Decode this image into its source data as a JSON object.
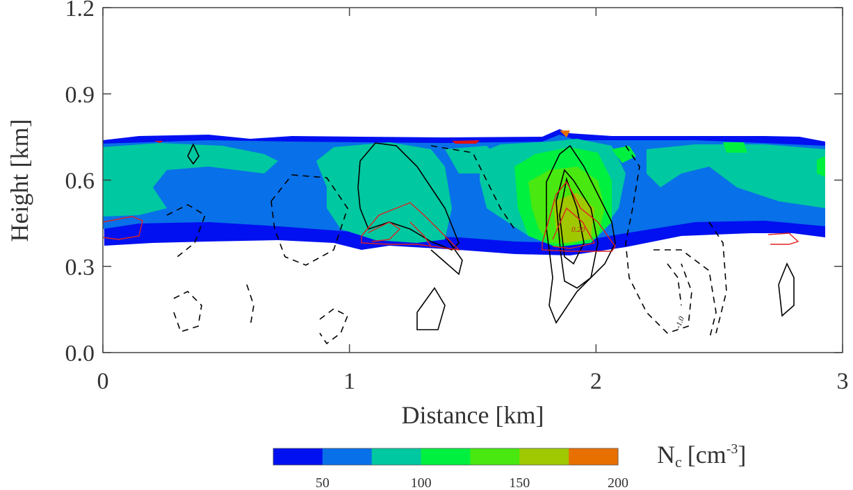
{
  "chart_data": {
    "type": "contour",
    "xlabel": "Distance [km]",
    "ylabel": "Height [km]",
    "xlim": [
      0,
      3
    ],
    "ylim": [
      0,
      1.2
    ],
    "x_ticks": [
      "0",
      "1",
      "2",
      "3"
    ],
    "y_ticks": [
      "0.0",
      "0.3",
      "0.6",
      "0.9",
      "1.2"
    ],
    "grid": false,
    "colorbar": {
      "title_main": "N",
      "title_sub": "c",
      "title_unit": "[cm",
      "title_exp": "-3",
      "title_close": "]",
      "levels": [
        25,
        50,
        75,
        100,
        125,
        150,
        175,
        200
      ],
      "colors": [
        "#0010f0",
        "#0870e8",
        "#00c8a0",
        "#00f040",
        "#48e810",
        "#a0c800",
        "#e87000"
      ],
      "tick_labels": [
        "50",
        "100",
        "150",
        "200"
      ],
      "tick_values": [
        50,
        100,
        150,
        200
      ]
    },
    "cloud_layer": {
      "x_range": [
        0,
        2.93
      ],
      "base_km": 0.38,
      "top_km": 0.75,
      "core": {
        "x_km": 1.88,
        "base_km": 0.36,
        "top_km": 0.76,
        "max_Nc": 175
      }
    },
    "overlay_lines": {
      "black_solid": "updraft contours",
      "black_dashed": "downdraft contours",
      "red": "liquid water contours"
    },
    "contour_labels": [
      "0.20",
      "-1.0"
    ]
  }
}
